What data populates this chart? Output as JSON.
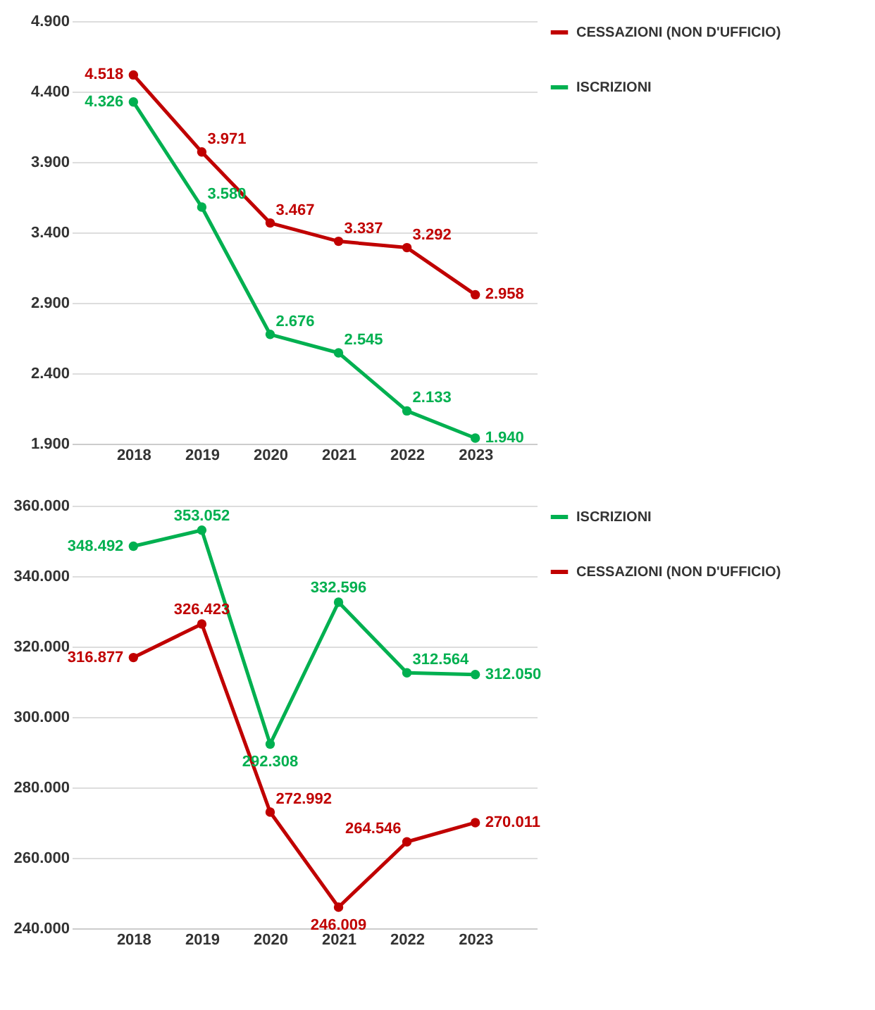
{
  "chart_data": [
    {
      "type": "line",
      "categories": [
        "2018",
        "2019",
        "2020",
        "2021",
        "2022",
        "2023"
      ],
      "ylim": [
        1900,
        4900
      ],
      "yticks": [
        {
          "value": 1900,
          "label": "1.900"
        },
        {
          "value": 2400,
          "label": "2.400"
        },
        {
          "value": 2900,
          "label": "2.900"
        },
        {
          "value": 3400,
          "label": "3.400"
        },
        {
          "value": 3900,
          "label": "3.900"
        },
        {
          "value": 4400,
          "label": "4.400"
        },
        {
          "value": 4900,
          "label": "4.900"
        }
      ],
      "grid": "y",
      "legend": "right",
      "marker": "circle",
      "series": [
        {
          "name": "CESSAZIONI (NON D'UFFICIO)",
          "color": "#c00000",
          "values": [
            4518,
            3971,
            3467,
            3337,
            3292,
            2958
          ],
          "value_labels": [
            "4.518",
            "3.971",
            "3.467",
            "3.337",
            "3.292",
            "2.958"
          ]
        },
        {
          "name": "ISCRIZIONI",
          "color": "#00b050",
          "values": [
            4326,
            3580,
            2676,
            2545,
            2133,
            1940
          ],
          "value_labels": [
            "4.326",
            "3.580",
            "2.676",
            "2.545",
            "2.133",
            "1.940"
          ]
        }
      ]
    },
    {
      "type": "line",
      "categories": [
        "2018",
        "2019",
        "2020",
        "2021",
        "2022",
        "2023"
      ],
      "ylim": [
        240000,
        360000
      ],
      "yticks": [
        {
          "value": 240000,
          "label": "240.000"
        },
        {
          "value": 260000,
          "label": "260.000"
        },
        {
          "value": 280000,
          "label": "280.000"
        },
        {
          "value": 300000,
          "label": "300.000"
        },
        {
          "value": 320000,
          "label": "320.000"
        },
        {
          "value": 340000,
          "label": "340.000"
        },
        {
          "value": 360000,
          "label": "360.000"
        }
      ],
      "grid": "y",
      "legend": "right",
      "marker": "circle",
      "series": [
        {
          "name": "ISCRIZIONI",
          "color": "#00b050",
          "values": [
            348492,
            353052,
            292308,
            332596,
            312564,
            312050
          ],
          "value_labels": [
            "348.492",
            "353.052",
            "292.308",
            "332.596",
            "312.564",
            "312.050"
          ]
        },
        {
          "name": "CESSAZIONI (NON D'UFFICIO)",
          "color": "#c00000",
          "values": [
            316877,
            326423,
            272992,
            246009,
            264546,
            270011
          ],
          "value_labels": [
            "316.877",
            "326.423",
            "272.992",
            "246.009",
            "264.546",
            "270.011"
          ]
        }
      ]
    }
  ]
}
